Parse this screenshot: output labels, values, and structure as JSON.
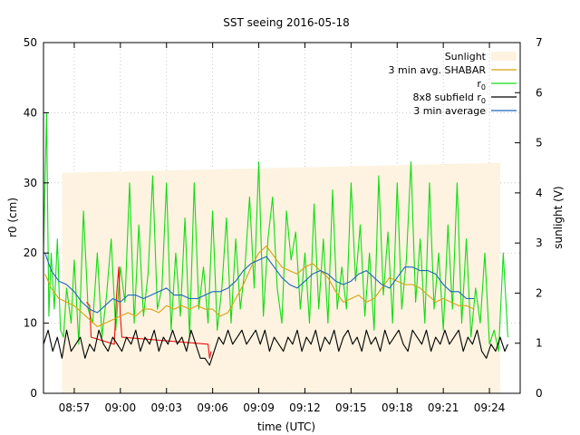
{
  "chart_data": {
    "type": "line",
    "title": "SST seeing 2016-05-18",
    "xlabel": "time (UTC)",
    "ylabel": "r0 (cm)",
    "y2label": "sunlight (V)",
    "x_unit": "minutes after 08:55 UTC",
    "xlim": [
      0,
      31
    ],
    "ylim": [
      0,
      50
    ],
    "y2lim": [
      0,
      7
    ],
    "x_ticks": [
      {
        "value": 2,
        "label": "08:57"
      },
      {
        "value": 5,
        "label": "09:00"
      },
      {
        "value": 8,
        "label": "09:03"
      },
      {
        "value": 11,
        "label": "09:06"
      },
      {
        "value": 14,
        "label": "09:09"
      },
      {
        "value": 17,
        "label": "09:12"
      },
      {
        "value": 20,
        "label": "09:15"
      },
      {
        "value": 23,
        "label": "09:18"
      },
      {
        "value": 26,
        "label": "09:21"
      },
      {
        "value": 29,
        "label": "09:24"
      }
    ],
    "y_ticks": [
      0,
      10,
      20,
      30,
      40,
      50
    ],
    "y2_ticks": [
      0,
      1,
      2,
      3,
      4,
      5,
      6,
      7
    ],
    "grid": true,
    "legend_position": "top-right",
    "sunlight": {
      "x": [
        1.2,
        29.7
      ],
      "y2": [
        4.4,
        4.6
      ],
      "color": "#fdf3e0"
    },
    "series": [
      {
        "name": "3 min avg. SHABAR",
        "color": "#d9a010",
        "x": [
          0.1,
          0.5,
          1.0,
          1.5,
          2.0,
          2.5,
          3.0,
          3.5,
          4.0,
          4.5,
          5.0,
          5.5,
          6.0,
          6.5,
          7.0,
          7.5,
          8.0,
          8.5,
          9.0,
          9.5,
          10.0,
          10.5,
          11.0,
          11.5,
          12.0,
          12.5,
          13.0,
          13.5,
          14.0,
          14.5,
          15.0,
          15.5,
          16.0,
          16.5,
          17.0,
          17.5,
          18.0,
          18.5,
          19.0,
          19.5,
          20.0,
          20.5,
          21.0,
          21.5,
          22.0,
          22.5,
          23.0,
          23.5,
          24.0,
          24.5,
          25.0,
          25.5,
          26.0,
          26.5,
          27.0,
          27.5,
          28.0
        ],
        "y": [
          17.0,
          15.0,
          13.5,
          13.0,
          12.5,
          11.5,
          10.5,
          9.5,
          10.0,
          10.5,
          11.0,
          11.5,
          11.0,
          12.0,
          12.0,
          11.5,
          12.5,
          12.0,
          12.5,
          12.0,
          12.5,
          12.0,
          12.0,
          11.0,
          11.5,
          13.5,
          15.5,
          18.0,
          20.0,
          21.0,
          19.5,
          18.0,
          17.5,
          17.0,
          18.0,
          18.5,
          17.5,
          16.5,
          14.5,
          13.0,
          13.5,
          14.0,
          13.0,
          13.5,
          15.0,
          16.5,
          16.0,
          15.5,
          15.5,
          15.0,
          14.0,
          13.0,
          13.5,
          13.0,
          12.5,
          12.5,
          12.0
        ]
      },
      {
        "name": "r0",
        "color": "#11dd11",
        "x": [
          0.0,
          0.2,
          0.35,
          0.5,
          0.7,
          0.9,
          1.1,
          1.3,
          1.5,
          1.8,
          2.0,
          2.3,
          2.6,
          2.9,
          3.2,
          3.5,
          3.8,
          4.1,
          4.4,
          4.7,
          5.0,
          5.3,
          5.6,
          5.9,
          6.2,
          6.5,
          6.8,
          7.1,
          7.4,
          7.7,
          8.0,
          8.3,
          8.6,
          8.9,
          9.2,
          9.5,
          9.8,
          10.1,
          10.4,
          10.7,
          11.0,
          11.3,
          11.6,
          11.9,
          12.2,
          12.5,
          12.8,
          13.1,
          13.4,
          13.7,
          14.0,
          14.3,
          14.6,
          14.9,
          15.2,
          15.5,
          15.8,
          16.1,
          16.4,
          16.7,
          17.0,
          17.3,
          17.6,
          17.9,
          18.2,
          18.5,
          18.8,
          19.1,
          19.4,
          19.7,
          20.0,
          20.3,
          20.6,
          20.9,
          21.2,
          21.5,
          21.8,
          22.1,
          22.4,
          22.7,
          23.0,
          23.3,
          23.6,
          23.9,
          24.2,
          24.5,
          24.8,
          25.1,
          25.4,
          25.7,
          26.0,
          26.3,
          26.6,
          26.9,
          27.2,
          27.5,
          27.8,
          28.1,
          28.4,
          28.7,
          29.0,
          29.3,
          29.6,
          29.9,
          30.2
        ],
        "y": [
          20.0,
          40.0,
          11.0,
          20.0,
          12.0,
          22.0,
          9.0,
          8.0,
          15.0,
          10.0,
          19.0,
          7.0,
          26.0,
          12.0,
          10.0,
          20.0,
          8.0,
          14.0,
          22.0,
          9.0,
          18.0,
          13.0,
          30.0,
          10.0,
          24.0,
          11.0,
          17.0,
          31.0,
          12.0,
          15.0,
          30.0,
          9.0,
          20.0,
          11.0,
          25.0,
          8.0,
          30.0,
          12.0,
          18.0,
          10.0,
          26.0,
          9.0,
          15.0,
          25.0,
          10.0,
          22.0,
          12.0,
          18.0,
          28.0,
          15.0,
          33.0,
          11.0,
          22.0,
          28.0,
          15.0,
          10.0,
          26.0,
          19.0,
          23.0,
          12.0,
          20.0,
          10.0,
          27.0,
          12.0,
          22.0,
          10.0,
          29.0,
          12.0,
          18.0,
          12.0,
          30.0,
          16.0,
          24.0,
          11.0,
          20.0,
          9.0,
          31.0,
          14.0,
          23.0,
          10.0,
          30.0,
          12.0,
          19.0,
          33.0,
          13.0,
          22.0,
          10.0,
          30.0,
          12.0,
          20.0,
          9.0,
          24.0,
          12.0,
          30.0,
          10.0,
          22.0,
          8.0,
          15.0,
          10.0,
          20.0,
          7.0,
          9.0,
          6.0,
          20.0,
          8.0
        ]
      },
      {
        "name": "8x8 subfield r0",
        "color": "#000000",
        "x": [
          0.0,
          0.3,
          0.6,
          0.9,
          1.2,
          1.5,
          1.8,
          2.1,
          2.4,
          2.7,
          3.0,
          3.3,
          3.6,
          3.9,
          4.2,
          4.5,
          4.8,
          5.1,
          5.4,
          5.7,
          6.0,
          6.3,
          6.6,
          6.9,
          7.2,
          7.5,
          7.8,
          8.1,
          8.4,
          8.7,
          9.0,
          9.3,
          9.6,
          9.9,
          10.2,
          10.5,
          10.8,
          11.1,
          11.4,
          11.7,
          12.0,
          12.3,
          12.6,
          12.9,
          13.2,
          13.5,
          13.8,
          14.1,
          14.4,
          14.7,
          15.0,
          15.3,
          15.6,
          15.9,
          16.2,
          16.5,
          16.8,
          17.1,
          17.4,
          17.7,
          18.0,
          18.3,
          18.6,
          18.9,
          19.2,
          19.5,
          19.8,
          20.1,
          20.4,
          20.7,
          21.0,
          21.3,
          21.6,
          21.9,
          22.2,
          22.5,
          22.8,
          23.1,
          23.4,
          23.7,
          24.0,
          24.3,
          24.6,
          24.9,
          25.2,
          25.5,
          25.8,
          26.1,
          26.4,
          26.7,
          27.0,
          27.3,
          27.6,
          27.9,
          28.2,
          28.5,
          28.8,
          29.1,
          29.4,
          29.7,
          30.0,
          30.2
        ],
        "y": [
          7.0,
          9.0,
          6.0,
          8.0,
          5.0,
          9.0,
          6.0,
          7.0,
          8.0,
          5.0,
          7.0,
          6.0,
          9.0,
          7.0,
          6.0,
          8.0,
          7.0,
          6.0,
          8.0,
          7.0,
          9.0,
          6.0,
          8.0,
          7.0,
          9.0,
          6.0,
          8.0,
          7.0,
          9.0,
          7.0,
          8.0,
          6.0,
          9.0,
          7.0,
          5.0,
          5.0,
          4.0,
          6.0,
          8.0,
          7.0,
          9.0,
          7.0,
          8.0,
          9.0,
          7.0,
          8.0,
          9.0,
          7.0,
          9.0,
          6.0,
          8.0,
          7.0,
          6.0,
          8.0,
          7.0,
          9.0,
          6.0,
          8.0,
          7.0,
          9.0,
          6.0,
          8.0,
          7.0,
          9.0,
          6.0,
          8.0,
          9.0,
          7.0,
          8.0,
          6.0,
          9.0,
          7.0,
          8.0,
          6.0,
          9.0,
          7.0,
          8.0,
          9.0,
          7.0,
          6.0,
          9.0,
          8.0,
          7.0,
          9.0,
          6.0,
          8.0,
          7.0,
          9.0,
          7.0,
          8.0,
          9.0,
          6.0,
          8.0,
          7.0,
          9.0,
          6.0,
          5.0,
          7.0,
          6.0,
          8.0,
          6.0,
          7.0
        ]
      },
      {
        "name": "3 min average",
        "color": "#1a66bb",
        "x": [
          0.1,
          0.5,
          1.0,
          1.5,
          2.0,
          2.5,
          3.0,
          3.5,
          4.0,
          4.5,
          5.0,
          5.5,
          6.0,
          6.5,
          7.0,
          7.5,
          8.0,
          8.5,
          9.0,
          9.5,
          10.0,
          10.5,
          11.0,
          11.5,
          12.0,
          12.5,
          13.0,
          13.5,
          14.0,
          14.5,
          15.0,
          15.5,
          16.0,
          16.5,
          17.0,
          17.5,
          18.0,
          18.5,
          19.0,
          19.5,
          20.0,
          20.5,
          21.0,
          21.5,
          22.0,
          22.5,
          23.0,
          23.5,
          24.0,
          24.5,
          25.0,
          25.5,
          26.0,
          26.5,
          27.0,
          27.5,
          28.0
        ],
        "y": [
          20.0,
          17.5,
          16.0,
          15.5,
          14.5,
          13.0,
          12.0,
          11.5,
          12.5,
          13.5,
          13.0,
          14.0,
          14.0,
          13.5,
          14.0,
          14.5,
          15.0,
          14.0,
          14.0,
          13.5,
          13.5,
          14.0,
          14.5,
          14.5,
          15.0,
          16.0,
          17.5,
          18.5,
          19.0,
          19.5,
          18.0,
          16.5,
          15.5,
          15.0,
          16.0,
          17.0,
          17.5,
          17.0,
          16.0,
          15.5,
          16.0,
          17.0,
          17.5,
          16.5,
          15.5,
          15.0,
          16.5,
          18.0,
          18.0,
          17.5,
          17.5,
          17.0,
          15.5,
          14.5,
          14.5,
          13.5,
          13.5
        ]
      },
      {
        "name": "",
        "color": "#ee1111",
        "x": [
          2.8,
          3.0,
          3.1,
          4.6,
          4.75,
          4.9,
          5.0,
          5.1,
          10.7,
          10.8,
          10.9
        ],
        "y": [
          13.0,
          12.5,
          8.0,
          7.0,
          14.0,
          18.0,
          11.0,
          8.0,
          7.0,
          5.0,
          6.0
        ]
      }
    ],
    "legend": [
      {
        "key": "sunlight",
        "label": "Sunlight"
      },
      {
        "key": "s0",
        "label": "3 min avg. SHABAR"
      },
      {
        "key": "s1",
        "label": "r",
        "sub": "0"
      },
      {
        "key": "s2",
        "label": "8x8 subfield r",
        "sub": "0"
      },
      {
        "key": "s3",
        "label": "3 min average"
      }
    ]
  }
}
